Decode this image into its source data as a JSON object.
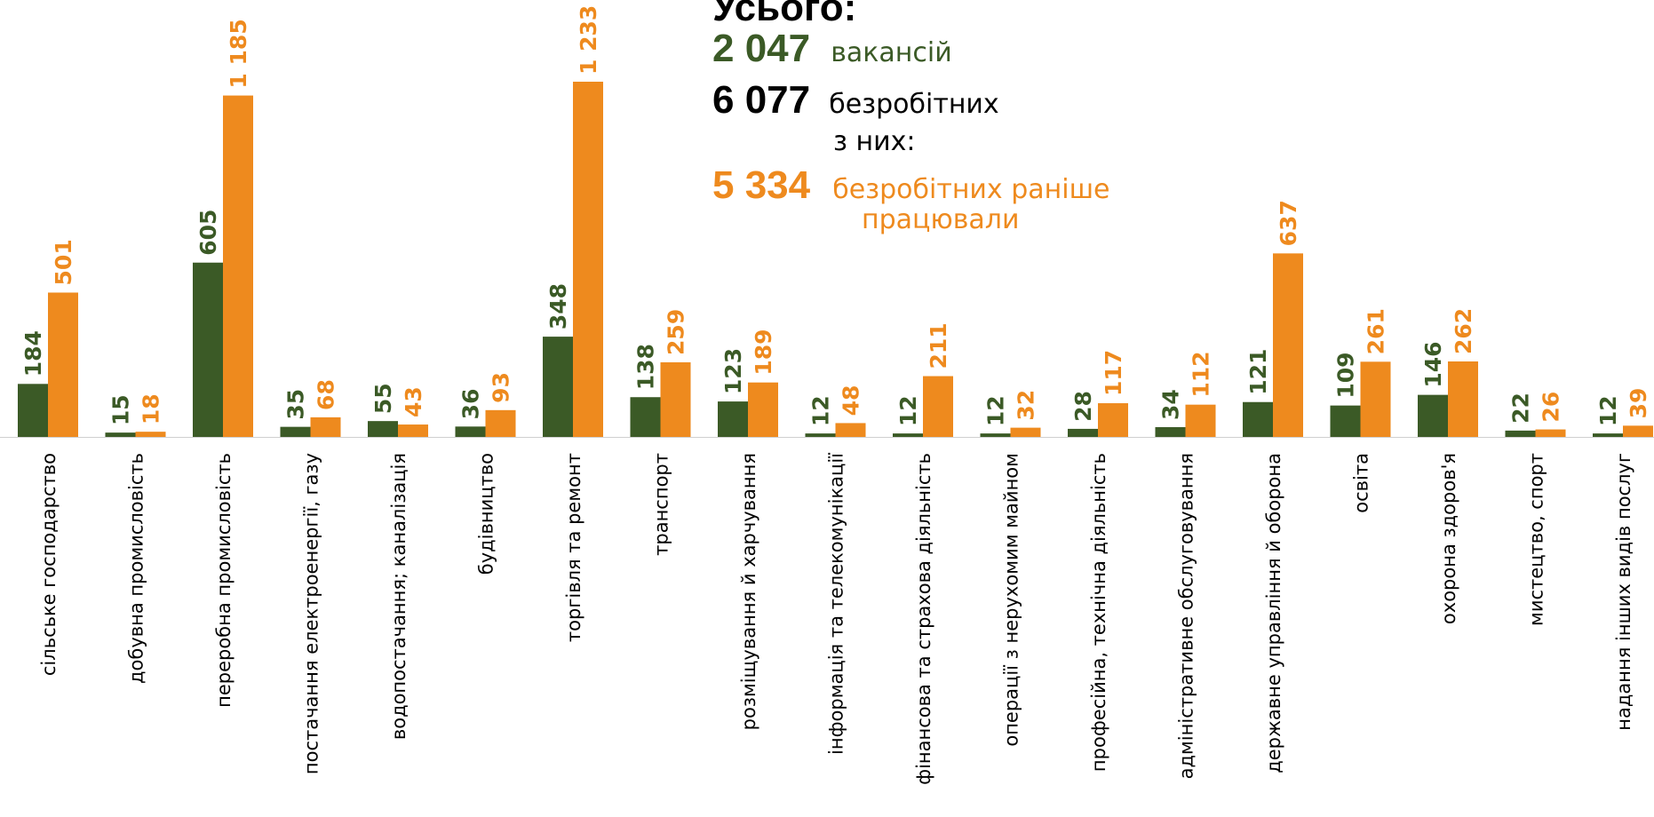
{
  "summary": {
    "heading": "Усього:",
    "vacancies_value": "2 047",
    "vacancies_label": "вакансій",
    "unemployed_value": "6 077",
    "unemployed_label": "безробітних",
    "of_them": "з них:",
    "worked_before_value": "5 334",
    "worked_before_label_line1": "безробітних раніше",
    "worked_before_label_line2": "працювали"
  },
  "colors": {
    "vacancies": "#3b5a26",
    "unemployed": "#ee8a1e"
  },
  "chart_data": {
    "type": "bar",
    "title": "",
    "xlabel": "",
    "ylabel": "",
    "ylim": [
      0,
      1300
    ],
    "grid": false,
    "categories": [
      "сільське господарство",
      "добувна промисловість",
      "переробна промисловість",
      "постачання електроенергії, газу",
      "водопостачання; каналізація",
      "будівництво",
      "торгівля та ремонт",
      "транспорт",
      "розміщування й харчування",
      "інформація та телекомунікації",
      "фінансова та страхова діяльність",
      "операції з нерухомим майном",
      "професійна, технічна діяльність",
      "адміністративне обслуговування",
      "державне управління й оборона",
      "освіта",
      "охорона здоров'я",
      "мистецтво, спорт",
      "надання інших видів послуг"
    ],
    "series": [
      {
        "values": [
          184,
          15,
          605,
          35,
          55,
          36,
          348,
          138,
          123,
          12,
          12,
          12,
          28,
          34,
          121,
          109,
          146,
          22,
          12
        ]
      },
      {
        "values": [
          501,
          18,
          1185,
          68,
          43,
          93,
          1233,
          259,
          189,
          48,
          211,
          32,
          117,
          112,
          637,
          261,
          262,
          26,
          39
        ]
      }
    ],
    "data_labels": [
      [
        "184",
        "15",
        "605",
        "35",
        "55",
        "36",
        "348",
        "138",
        "123",
        "12",
        "12",
        "12",
        "28",
        "34",
        "121",
        "109",
        "146",
        "22",
        "12"
      ],
      [
        "501",
        "18",
        "1 185",
        "68",
        "43",
        "93",
        "1 233",
        "259",
        "189",
        "48",
        "211",
        "32",
        "117",
        "112",
        "637",
        "261",
        "262",
        "26",
        "39"
      ]
    ]
  }
}
